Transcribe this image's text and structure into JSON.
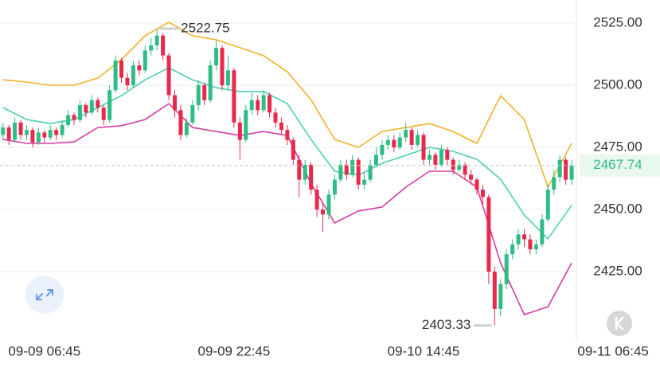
{
  "chart_data": {
    "type": "candlestick",
    "open": [
      2480,
      2483,
      2478,
      2485,
      2480,
      2482,
      2477,
      2481,
      2479,
      2482,
      2480,
      2484,
      2488,
      2486,
      2492,
      2489,
      2494,
      2491,
      2486,
      2498,
      2510,
      2503,
      2500,
      2508,
      2506,
      2514,
      2516,
      2520,
      2512,
      2496,
      2490,
      2480,
      2485,
      2492,
      2500,
      2494,
      2508,
      2515,
      2500,
      2506,
      2485,
      2478,
      2490,
      2494,
      2490,
      2496,
      2489,
      2485,
      2482,
      2478,
      2470,
      2462,
      2468,
      2458,
      2450,
      2448,
      2456,
      2462,
      2468,
      2464,
      2470,
      2460,
      2462,
      2468,
      2472,
      2476,
      2478,
      2475,
      2479,
      2482,
      2476,
      2480,
      2470,
      2472,
      2468,
      2474,
      2470,
      2466,
      2468,
      2464,
      2462,
      2458,
      2455,
      2425,
      2410,
      2420,
      2432,
      2436,
      2440,
      2438,
      2434,
      2436,
      2446,
      2458,
      2463,
      2470,
      2462
    ],
    "high": [
      2485,
      2484,
      2487,
      2486,
      2484,
      2483,
      2483,
      2482,
      2484,
      2483,
      2486,
      2490,
      2489,
      2494,
      2493,
      2496,
      2495,
      2492,
      2500,
      2512,
      2511,
      2505,
      2510,
      2510,
      2516,
      2519,
      2522.75,
      2521,
      2513,
      2498,
      2492,
      2487,
      2494,
      2502,
      2501,
      2510,
      2518,
      2516,
      2512,
      2507,
      2487,
      2492,
      2497,
      2496,
      2498,
      2497,
      2491,
      2487,
      2484,
      2479,
      2472,
      2470,
      2469,
      2460,
      2453,
      2458,
      2464,
      2470,
      2470,
      2472,
      2471,
      2465,
      2470,
      2475,
      2478,
      2480,
      2480,
      2481,
      2485,
      2483,
      2482,
      2481,
      2474,
      2473,
      2476,
      2475,
      2471,
      2470,
      2469,
      2466,
      2463,
      2460,
      2456,
      2427,
      2422,
      2434,
      2438,
      2442,
      2442,
      2440,
      2438,
      2448,
      2460,
      2466,
      2472,
      2471,
      2470
    ],
    "low": [
      2478,
      2476,
      2477,
      2478,
      2478,
      2475,
      2476,
      2477,
      2478,
      2478,
      2479,
      2483,
      2484,
      2485,
      2487,
      2488,
      2489,
      2484,
      2485,
      2497,
      2501,
      2498,
      2499,
      2504,
      2505,
      2512,
      2514,
      2510,
      2494,
      2487,
      2478,
      2479,
      2484,
      2490,
      2492,
      2493,
      2506,
      2498,
      2498,
      2483,
      2470,
      2477,
      2488,
      2488,
      2489,
      2487,
      2483,
      2480,
      2476,
      2468,
      2455,
      2460,
      2456,
      2447,
      2441,
      2446,
      2454,
      2461,
      2462,
      2463,
      2458,
      2458,
      2461,
      2467,
      2470,
      2474,
      2473,
      2474,
      2477,
      2474,
      2475,
      2468,
      2468,
      2466,
      2467,
      2468,
      2464,
      2465,
      2462,
      2460,
      2456,
      2452,
      2420,
      2403.33,
      2407,
      2418,
      2430,
      2434,
      2435,
      2432,
      2432,
      2435,
      2445,
      2456,
      2461,
      2460,
      2460
    ],
    "close": [
      2483,
      2478,
      2485,
      2480,
      2482,
      2477,
      2481,
      2479,
      2482,
      2480,
      2484,
      2488,
      2486,
      2492,
      2489,
      2494,
      2491,
      2486,
      2498,
      2510,
      2503,
      2500,
      2508,
      2506,
      2514,
      2516,
      2520,
      2512,
      2496,
      2490,
      2480,
      2485,
      2492,
      2500,
      2494,
      2508,
      2515,
      2500,
      2506,
      2485,
      2478,
      2490,
      2494,
      2490,
      2496,
      2489,
      2485,
      2482,
      2478,
      2470,
      2462,
      2468,
      2458,
      2450,
      2448,
      2456,
      2462,
      2468,
      2464,
      2470,
      2460,
      2462,
      2468,
      2472,
      2476,
      2478,
      2475,
      2479,
      2482,
      2476,
      2480,
      2470,
      2472,
      2468,
      2474,
      2470,
      2466,
      2468,
      2464,
      2462,
      2458,
      2455,
      2425,
      2410,
      2420,
      2432,
      2436,
      2440,
      2438,
      2434,
      2436,
      2446,
      2458,
      2463,
      2470,
      2462,
      2467.74
    ],
    "up_color": "#2dbd85",
    "down_color": "#e8294c",
    "bands": [
      {
        "color": "#f0b22a",
        "x": [
          0,
          4,
          8,
          12,
          16,
          20,
          24,
          28,
          32,
          36,
          40,
          44,
          48,
          52,
          56,
          60,
          64,
          68,
          72,
          76,
          80,
          84,
          88,
          92,
          96
        ],
        "values": [
          2502.2,
          2501.3,
          2500,
          2500,
          2502.9,
          2510.3,
          2519.9,
          2525.3,
          2519.9,
          2518.3,
          2515.1,
          2511.9,
          2505.4,
          2494.2,
          2478.2,
          2475,
          2481.4,
          2483,
          2484.6,
          2481.4,
          2476.6,
          2495.8,
          2486.2,
          2459,
          2476.6
        ]
      },
      {
        "color": "#4ccfb0",
        "x": [
          0,
          4,
          8,
          12,
          16,
          20,
          24,
          28,
          32,
          36,
          40,
          44,
          48,
          52,
          56,
          60,
          64,
          68,
          72,
          76,
          80,
          84,
          88,
          92,
          96
        ],
        "values": [
          2491,
          2486.2,
          2484.6,
          2486.2,
          2491,
          2495.8,
          2502.2,
          2507,
          2502.2,
          2499,
          2497.4,
          2497.4,
          2492.6,
          2478.2,
          2465.4,
          2463.8,
          2468.6,
          2471.8,
          2475,
          2473.4,
          2470.2,
          2462.2,
          2447.8,
          2438.2,
          2451.7
        ]
      },
      {
        "color": "#d43ea2",
        "x": [
          0,
          4,
          8,
          12,
          16,
          20,
          24,
          28,
          32,
          36,
          40,
          44,
          48,
          52,
          56,
          60,
          64,
          68,
          72,
          76,
          80,
          84,
          88,
          92,
          96
        ],
        "values": [
          2478.2,
          2476.6,
          2476.6,
          2477.2,
          2483,
          2483.7,
          2486.2,
          2492.6,
          2483,
          2481.4,
          2479.8,
          2481.4,
          2479.8,
          2460.6,
          2444.6,
          2449.4,
          2451,
          2459,
          2465.4,
          2465.4,
          2459,
          2428.5,
          2407.7,
          2410.9,
          2428.5
        ]
      }
    ],
    "ylim": [
      2399.7,
      2534.3
    ],
    "yticks": [
      {
        "value": 2425,
        "label": "2425.00"
      },
      {
        "value": 2450,
        "label": "2450.00"
      },
      {
        "value": 2475,
        "label": "2475.00"
      },
      {
        "value": 2500,
        "label": "2500.00"
      },
      {
        "value": 2525,
        "label": "2525.00"
      }
    ],
    "xlim": [
      -0.5,
      96.8
    ],
    "xticks": [
      {
        "value": 7,
        "label": "09-09 06:45"
      },
      {
        "value": 39,
        "label": "09-09 22:45"
      },
      {
        "value": 71,
        "label": "09-10 14:45"
      },
      {
        "value": 103,
        "label": "09-11 06:45"
      }
    ],
    "grid": true
  }
}
